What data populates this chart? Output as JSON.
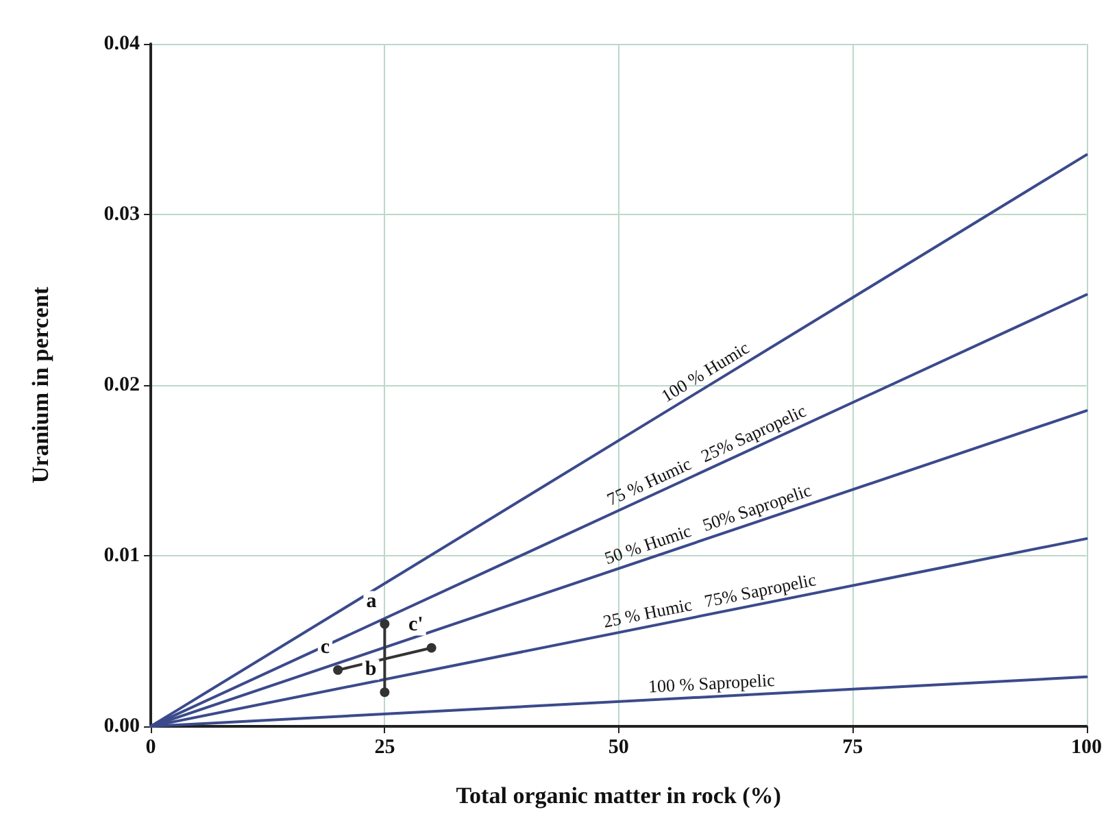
{
  "chart_data": {
    "type": "line",
    "xlabel": "Total organic matter in rock (%)",
    "ylabel": "Uranium in percent",
    "xlim": [
      0,
      100
    ],
    "ylim": [
      0,
      0.04
    ],
    "xticks": [
      0,
      25,
      50,
      75,
      100
    ],
    "yticks": [
      {
        "value": 0,
        "label": "0.00"
      },
      {
        "value": 0.01,
        "label": "0.01"
      },
      {
        "value": 0.02,
        "label": "0.02"
      },
      {
        "value": 0.03,
        "label": "0.03"
      },
      {
        "value": 0.04,
        "label": "0.04"
      }
    ],
    "grid": true,
    "legend": false,
    "marker": "none",
    "line_style": "solid",
    "series": [
      {
        "name": "100 % Humic",
        "color": "#3b4a8c",
        "x": [
          0,
          100
        ],
        "values": [
          0,
          0.0335
        ]
      },
      {
        "name": "75 % Humic   25% Sapropelic",
        "color": "#3b4a8c",
        "x": [
          0,
          100
        ],
        "values": [
          0,
          0.0253
        ]
      },
      {
        "name": "50 % Humic   50% Sapropelic",
        "color": "#3b4a8c",
        "x": [
          0,
          100
        ],
        "values": [
          0,
          0.0185
        ]
      },
      {
        "name": "25 % Humic   75% Sapropelic",
        "color": "#3b4a8c",
        "x": [
          0,
          100
        ],
        "values": [
          0,
          0.011
        ]
      },
      {
        "name": "100 % Sapropelic",
        "color": "#3b4a8c",
        "x": [
          0,
          100
        ],
        "values": [
          0,
          0.0029
        ]
      },
      {
        "color": "#333333",
        "marker": "circle",
        "x": [
          25,
          25
        ],
        "values": [
          0.006,
          0.002
        ]
      },
      {
        "color": "#333333",
        "marker": "circle",
        "x": [
          20,
          30
        ],
        "values": [
          0.0033,
          0.0046
        ]
      }
    ],
    "annotations": [
      {
        "text": "a",
        "x": 25,
        "y": 0.006
      },
      {
        "text": "b",
        "x": 25,
        "y": 0.002
      },
      {
        "text": "c",
        "x": 20,
        "y": 0.0033
      },
      {
        "text": "c'",
        "x": 30,
        "y": 0.0046
      }
    ]
  }
}
